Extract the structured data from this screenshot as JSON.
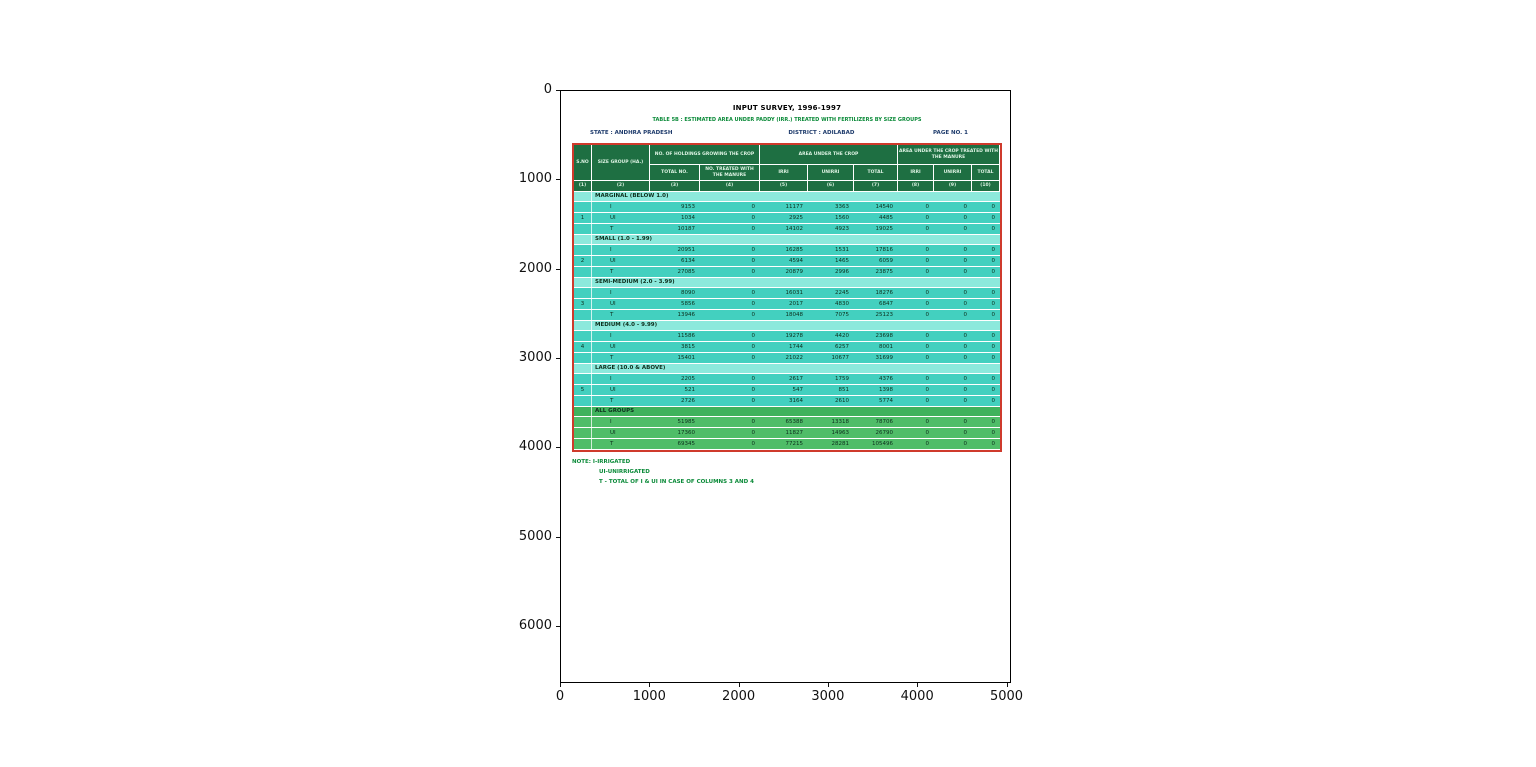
{
  "chart_data": {
    "type": "table",
    "x_ticks": [
      "0",
      "1000",
      "2000",
      "3000",
      "4000",
      "5000"
    ],
    "y_ticks": [
      "0",
      "1000",
      "2000",
      "3000",
      "4000",
      "5000",
      "6000"
    ]
  },
  "document": {
    "title": "INPUT SURVEY, 1996-1997",
    "subtitle": "TABLE 5B : ESTIMATED AREA UNDER PADDY (IRR.) TREATED WITH FERTILIZERS BY SIZE GROUPS",
    "meta": {
      "state": "STATE : ANDHRA PRADESH",
      "district": "DISTRICT : ADILABAD",
      "page": "PAGE NO. 1"
    }
  },
  "table": {
    "header": {
      "sno": "S.NO",
      "size_group": "SIZE GROUP (HA.)",
      "holdings_group": "NO. OF HOLDINGS GROWING THE CROP",
      "area_group": "AREA UNDER THE CROP",
      "treated_group": "AREA UNDER THE CROP TREATED WITH THE MANURE",
      "sub": [
        "TOTAL NO.",
        "NO. TREATED WITH THE MANURE",
        "IRRI",
        "UNIRRI",
        "TOTAL",
        "IRRI",
        "UNIRRI",
        "TOTAL"
      ],
      "col_numbers": [
        "(1)",
        "(2)",
        "(3)",
        "(4)",
        "(5)",
        "(6)",
        "(7)",
        "(8)",
        "(9)",
        "(10)"
      ]
    },
    "groups": [
      {
        "sno": "1",
        "label": "MARGINAL (BELOW 1.0)",
        "theme": "teal",
        "rows": [
          {
            "label": "I",
            "values": [
              "9153",
              "0",
              "11177",
              "3363",
              "14540",
              "0",
              "0",
              "0"
            ]
          },
          {
            "label": "UI",
            "values": [
              "1034",
              "0",
              "2925",
              "1560",
              "4485",
              "0",
              "0",
              "0"
            ]
          },
          {
            "label": "T",
            "values": [
              "10187",
              "0",
              "14102",
              "4923",
              "19025",
              "0",
              "0",
              "0"
            ]
          }
        ]
      },
      {
        "sno": "2",
        "label": "SMALL (1.0 - 1.99)",
        "theme": "teal",
        "rows": [
          {
            "label": "I",
            "values": [
              "20951",
              "0",
              "16285",
              "1531",
              "17816",
              "0",
              "0",
              "0"
            ]
          },
          {
            "label": "UI",
            "values": [
              "6134",
              "0",
              "4594",
              "1465",
              "6059",
              "0",
              "0",
              "0"
            ]
          },
          {
            "label": "T",
            "values": [
              "27085",
              "0",
              "20879",
              "2996",
              "23875",
              "0",
              "0",
              "0"
            ]
          }
        ]
      },
      {
        "sno": "3",
        "label": "SEMI-MEDIUM (2.0 - 3.99)",
        "theme": "teal",
        "rows": [
          {
            "label": "I",
            "values": [
              "8090",
              "0",
              "16031",
              "2245",
              "18276",
              "0",
              "0",
              "0"
            ]
          },
          {
            "label": "UI",
            "values": [
              "5856",
              "0",
              "2017",
              "4830",
              "6847",
              "0",
              "0",
              "0"
            ]
          },
          {
            "label": "T",
            "values": [
              "13946",
              "0",
              "18048",
              "7075",
              "25123",
              "0",
              "0",
              "0"
            ]
          }
        ]
      },
      {
        "sno": "4",
        "label": "MEDIUM (4.0 - 9.99)",
        "theme": "teal",
        "rows": [
          {
            "label": "I",
            "values": [
              "11586",
              "0",
              "19278",
              "4420",
              "23698",
              "0",
              "0",
              "0"
            ]
          },
          {
            "label": "UI",
            "values": [
              "3815",
              "0",
              "1744",
              "6257",
              "8001",
              "0",
              "0",
              "0"
            ]
          },
          {
            "label": "T",
            "values": [
              "15401",
              "0",
              "21022",
              "10677",
              "31699",
              "0",
              "0",
              "0"
            ]
          }
        ]
      },
      {
        "sno": "5",
        "label": "LARGE (10.0 & ABOVE)",
        "theme": "teal",
        "rows": [
          {
            "label": "I",
            "values": [
              "2205",
              "0",
              "2617",
              "1759",
              "4376",
              "0",
              "0",
              "0"
            ]
          },
          {
            "label": "UI",
            "values": [
              "521",
              "0",
              "547",
              "851",
              "1398",
              "0",
              "0",
              "0"
            ]
          },
          {
            "label": "T",
            "values": [
              "2726",
              "0",
              "3164",
              "2610",
              "5774",
              "0",
              "0",
              "0"
            ]
          }
        ]
      },
      {
        "sno": "",
        "label": "ALL GROUPS",
        "theme": "green",
        "rows": [
          {
            "label": "I",
            "values": [
              "51985",
              "0",
              "65388",
              "13318",
              "78706",
              "0",
              "0",
              "0"
            ]
          },
          {
            "label": "UI",
            "values": [
              "17360",
              "0",
              "11827",
              "14963",
              "26790",
              "0",
              "0",
              "0"
            ]
          },
          {
            "label": "T",
            "values": [
              "69345",
              "0",
              "77215",
              "28281",
              "105496",
              "0",
              "0",
              "0"
            ]
          }
        ]
      }
    ]
  },
  "notes": [
    "NOTE: I-IRRIGATED",
    "UI-UNIRRIGATED",
    "T - TOTAL OF I & UI IN CASE OF COLUMNS 3 AND 4"
  ]
}
